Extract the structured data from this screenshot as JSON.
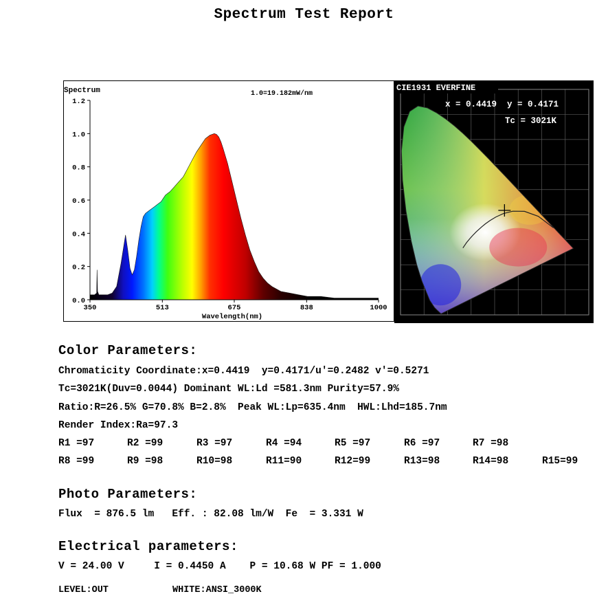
{
  "report_title": "Spectrum Test Report",
  "chart_data": [
    {
      "type": "area",
      "title": "Spectrum",
      "annotation": "1.0=19.182mW/nm",
      "xlabel": "Wavelength(nm)",
      "ylabel": "",
      "xlim": [
        350,
        1000
      ],
      "ylim": [
        0,
        1.2
      ],
      "x_ticks": [
        "350",
        "513",
        "675",
        "838",
        "1000"
      ],
      "y_ticks": [
        "0.0",
        "0.2",
        "0.4",
        "0.6",
        "0.8",
        "1.0",
        "1.2"
      ],
      "series": [
        {
          "x": [
            350,
            360,
            365,
            366,
            367,
            370,
            380,
            390,
            400,
            410,
            420,
            430,
            435,
            440,
            445,
            450,
            455,
            460,
            465,
            470,
            475,
            480,
            485,
            490,
            495,
            500,
            505,
            510,
            515,
            520,
            525,
            530,
            540,
            550,
            560,
            570,
            580,
            590,
            600,
            610,
            620,
            630,
            635,
            640,
            645,
            650,
            660,
            670,
            680,
            690,
            700,
            710,
            720,
            730,
            740,
            750,
            760,
            780,
            800,
            820,
            840,
            870,
            900,
            950,
            1000
          ],
          "y": [
            0.03,
            0.03,
            0.04,
            0.18,
            0.05,
            0.03,
            0.03,
            0.03,
            0.04,
            0.08,
            0.22,
            0.39,
            0.3,
            0.19,
            0.15,
            0.18,
            0.26,
            0.36,
            0.44,
            0.5,
            0.52,
            0.53,
            0.54,
            0.55,
            0.56,
            0.57,
            0.58,
            0.59,
            0.61,
            0.63,
            0.64,
            0.65,
            0.68,
            0.71,
            0.74,
            0.79,
            0.84,
            0.89,
            0.93,
            0.97,
            0.99,
            1.0,
            0.995,
            0.98,
            0.95,
            0.91,
            0.82,
            0.71,
            0.6,
            0.49,
            0.39,
            0.3,
            0.23,
            0.17,
            0.13,
            0.1,
            0.08,
            0.05,
            0.04,
            0.03,
            0.02,
            0.02,
            0.01,
            0.01,
            0.01
          ]
        }
      ]
    },
    {
      "type": "scatter",
      "title": "CIE1931 EVERFINE",
      "annotations": [
        "x = 0.4419  y = 0.4171",
        "Tc = 3021K"
      ],
      "point": {
        "x": 0.4419,
        "y": 0.4171
      },
      "xlim": [
        0,
        0.8
      ],
      "ylim": [
        0,
        0.9
      ],
      "grid": true
    }
  ],
  "color_params": {
    "heading": "Color Parameters:",
    "line1": "Chromaticity Coordinate:x=0.4419  y=0.4171/u'=0.2482 v'=0.5271",
    "line2": "Tc=3021K(Duv=0.0044) Dominant WL:Ld =581.3nm Purity=57.9%",
    "line3": "Ratio:R=26.5% G=70.8% B=2.8%  Peak WL:Lp=635.4nm  HWL:Lhd=185.7nm",
    "line4": "Render Index:Ra=97.3",
    "r_row1": [
      "R1 =97",
      "R2 =99",
      "R3 =97",
      "R4 =94",
      "R5 =97",
      "R6 =97",
      "R7 =98"
    ],
    "r_row2": [
      "R8 =99",
      "R9 =98",
      "R10=98",
      "R11=90",
      "R12=99",
      "R13=98",
      "R14=98",
      "R15=99"
    ]
  },
  "photo_params": {
    "heading": "Photo Parameters:",
    "line1": "Flux  = 876.5 lm   Eff. : 82.08 lm/W  Fe  = 3.331 W"
  },
  "electrical_params": {
    "heading": "Electrical parameters:",
    "line1": "V = 24.00 V     I = 0.4450 A    P = 10.68 W PF = 1.000",
    "level": "LEVEL:OUT",
    "white": "WHITE:ANSI_3000K"
  }
}
